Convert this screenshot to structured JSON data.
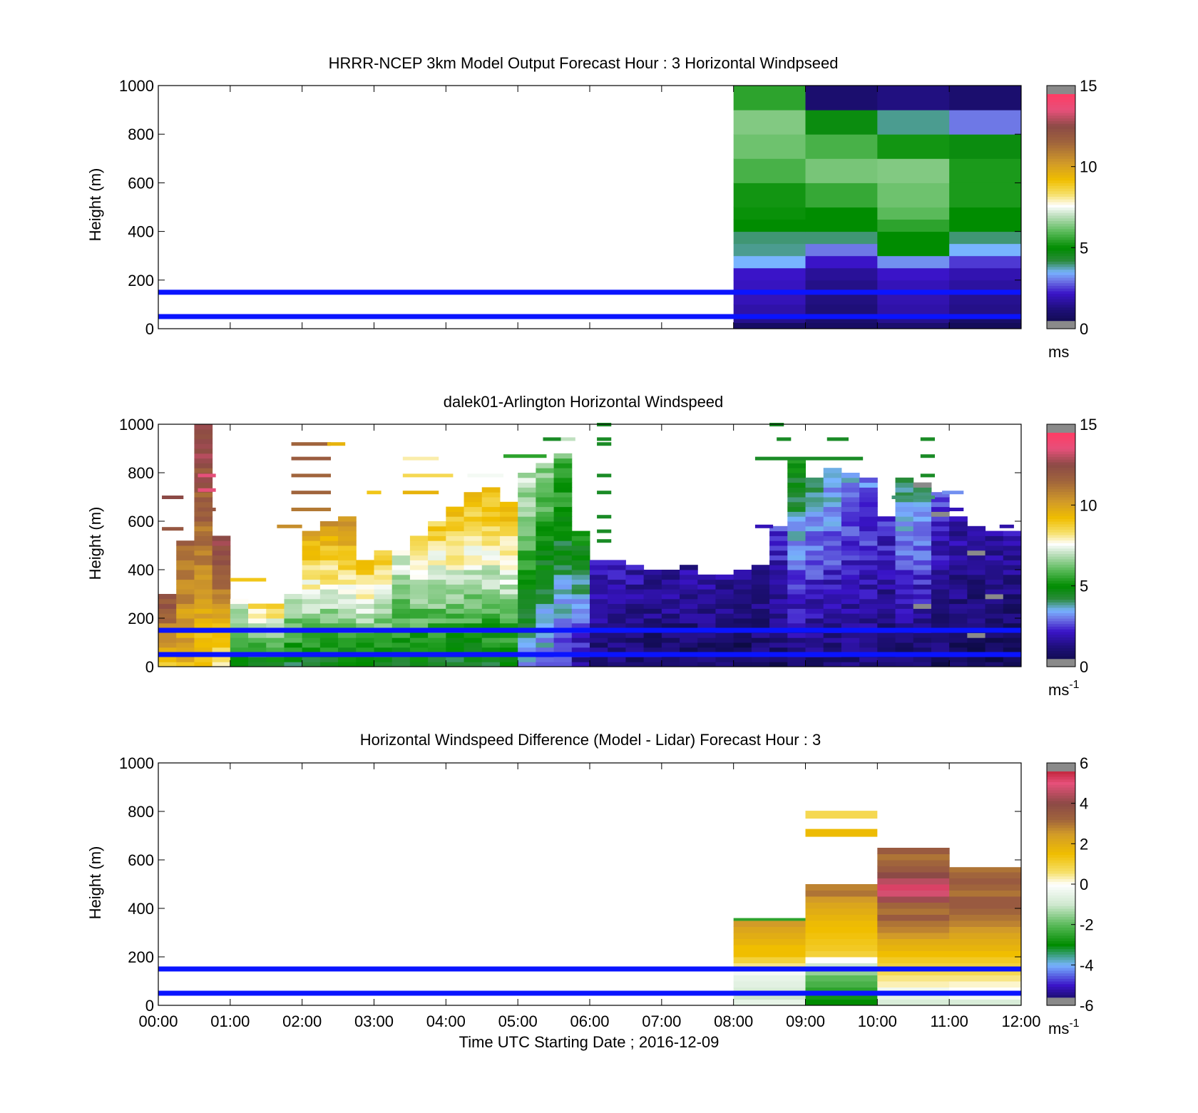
{
  "figure": {
    "xlabel": "Time UTC  Starting Date ; 2016-12-09"
  },
  "chart_data": [
    {
      "type": "heatmap",
      "id": "model",
      "title": "HRRR-NCEP 3km Model Output   Forecast Hour : 3 Horizontal Windpseed",
      "ylabel": "Height (m)",
      "xlim": [
        0,
        12
      ],
      "ylim": [
        0,
        1000
      ],
      "yticks": [
        0,
        200,
        400,
        600,
        800,
        1000
      ],
      "xticks": [
        0,
        1,
        2,
        3,
        4,
        5,
        6,
        7,
        8,
        9,
        10,
        11,
        12
      ],
      "xticklabels_shown": false,
      "colorbar": {
        "min": 0,
        "max": 15,
        "ticks": [
          0,
          5,
          10,
          15
        ],
        "unit": "ms",
        "colormap": "speed"
      },
      "reference_lines_m": [
        50,
        150
      ],
      "columns_x": [
        8,
        9,
        10,
        11
      ],
      "row_bounds_m": [
        0,
        25,
        50,
        100,
        150,
        200,
        250,
        300,
        350,
        400,
        450,
        500,
        600,
        700,
        800,
        900,
        1000
      ],
      "cells_ms": [
        [
          0.8,
          0.8,
          1.0,
          0.6
        ],
        [
          1.5,
          1.0,
          1.5,
          0.9
        ],
        [
          1.8,
          1.2,
          1.8,
          1.4
        ],
        [
          2.0,
          1.3,
          1.9,
          1.5
        ],
        [
          2.1,
          1.4,
          2.0,
          1.7
        ],
        [
          2.2,
          1.6,
          2.2,
          1.9
        ],
        [
          3.5,
          2.2,
          3.2,
          2.5
        ],
        [
          3.9,
          3.0,
          5.0,
          3.5
        ],
        [
          4.0,
          4.0,
          5.0,
          4.0
        ],
        [
          5.0,
          5.0,
          5.5,
          5.0
        ],
        [
          5.1,
          5.0,
          6.0,
          5.0
        ],
        [
          5.2,
          5.6,
          6.2,
          5.3
        ],
        [
          5.8,
          6.3,
          6.4,
          5.3
        ],
        [
          6.2,
          5.8,
          5.2,
          4.8
        ],
        [
          6.4,
          4.8,
          3.9,
          3.0
        ],
        [
          5.5,
          1.0,
          1.3,
          1.0
        ]
      ]
    },
    {
      "type": "heatmap",
      "id": "lidar",
      "title": "dalek01-Arlington  Horizontal Windspeed",
      "ylabel": "Height (m)",
      "xlim": [
        0,
        12
      ],
      "ylim": [
        0,
        1000
      ],
      "yticks": [
        0,
        200,
        400,
        600,
        800,
        1000
      ],
      "xticks": [
        0,
        1,
        2,
        3,
        4,
        5,
        6,
        7,
        8,
        9,
        10,
        11,
        12
      ],
      "xticklabels_shown": false,
      "colorbar": {
        "min": 0,
        "max": 15,
        "ticks": [
          0,
          5,
          10,
          15
        ],
        "unit": "ms",
        "unit_exp": "-1",
        "colormap": "speed"
      },
      "reference_lines_m": [
        50,
        150
      ],
      "column_width_h": 0.25,
      "row_step_m": 20,
      "profiles": [
        {
          "t": 0.0,
          "top": 300,
          "lo": 9.0,
          "hi": 12.5
        },
        {
          "t": 0.25,
          "top": 520,
          "lo": 9.5,
          "hi": 11.5
        },
        {
          "t": 0.5,
          "top": 1000,
          "lo": 9.0,
          "hi": 13.0
        },
        {
          "t": 0.75,
          "top": 530,
          "lo": 8.0,
          "hi": 13.0
        },
        {
          "t": 1.0,
          "top": 280,
          "lo": 4.5,
          "hi": 7.5
        },
        {
          "t": 1.25,
          "top": 260,
          "lo": 4.8,
          "hi": 8.5
        },
        {
          "t": 1.5,
          "top": 250,
          "lo": 4.5,
          "hi": 8.8
        },
        {
          "t": 1.75,
          "top": 300,
          "lo": 4.5,
          "hi": 7.5
        },
        {
          "t": 2.0,
          "top": 560,
          "lo": 4.5,
          "hi": 10.0
        },
        {
          "t": 2.25,
          "top": 590,
          "lo": 4.5,
          "hi": 10.3
        },
        {
          "t": 2.5,
          "top": 610,
          "lo": 4.5,
          "hi": 10.5
        },
        {
          "t": 2.75,
          "top": 440,
          "lo": 4.5,
          "hi": 9.5
        },
        {
          "t": 3.0,
          "top": 470,
          "lo": 4.5,
          "hi": 9.0
        },
        {
          "t": 3.25,
          "top": 480,
          "lo": 4.5,
          "hi": 7.5
        },
        {
          "t": 3.5,
          "top": 540,
          "lo": 4.5,
          "hi": 8.5
        },
        {
          "t": 3.75,
          "top": 600,
          "lo": 4.5,
          "hi": 9.0
        },
        {
          "t": 4.0,
          "top": 660,
          "lo": 4.5,
          "hi": 9.5
        },
        {
          "t": 4.25,
          "top": 720,
          "lo": 4.5,
          "hi": 9.5
        },
        {
          "t": 4.5,
          "top": 730,
          "lo": 4.5,
          "hi": 9.5
        },
        {
          "t": 4.75,
          "top": 680,
          "lo": 4.5,
          "hi": 9.5
        },
        {
          "t": 5.0,
          "top": 800,
          "lo": 3.5,
          "hi": 7.2
        },
        {
          "t": 5.25,
          "top": 830,
          "lo": 3.0,
          "hi": 6.5
        },
        {
          "t": 5.5,
          "top": 880,
          "lo": 2.5,
          "hi": 6.0
        },
        {
          "t": 5.75,
          "top": 560,
          "lo": 1.5,
          "hi": 5.5
        },
        {
          "t": 6.0,
          "top": 440,
          "lo": 1.0,
          "hi": 2.2
        },
        {
          "t": 6.25,
          "top": 440,
          "lo": 1.0,
          "hi": 2.0
        },
        {
          "t": 6.5,
          "top": 420,
          "lo": 1.0,
          "hi": 2.0
        },
        {
          "t": 6.75,
          "top": 400,
          "lo": 0.8,
          "hi": 1.8
        },
        {
          "t": 7.0,
          "top": 400,
          "lo": 0.8,
          "hi": 1.8
        },
        {
          "t": 7.25,
          "top": 420,
          "lo": 0.8,
          "hi": 1.7
        },
        {
          "t": 7.5,
          "top": 380,
          "lo": 0.8,
          "hi": 1.7
        },
        {
          "t": 7.75,
          "top": 370,
          "lo": 0.8,
          "hi": 1.7
        },
        {
          "t": 8.0,
          "top": 390,
          "lo": 0.5,
          "hi": 1.5
        },
        {
          "t": 8.25,
          "top": 410,
          "lo": 0.8,
          "hi": 1.8
        },
        {
          "t": 8.5,
          "top": 580,
          "lo": 0.8,
          "hi": 2.5
        },
        {
          "t": 8.75,
          "top": 850,
          "lo": 1.0,
          "hi": 5.0
        },
        {
          "t": 9.0,
          "top": 780,
          "lo": 1.0,
          "hi": 4.0
        },
        {
          "t": 9.25,
          "top": 820,
          "lo": 1.0,
          "hi": 3.8
        },
        {
          "t": 9.5,
          "top": 800,
          "lo": 1.0,
          "hi": 3.5
        },
        {
          "t": 9.75,
          "top": 780,
          "lo": 1.0,
          "hi": 3.0
        },
        {
          "t": 10.0,
          "top": 620,
          "lo": 0.8,
          "hi": 2.5
        },
        {
          "t": 10.25,
          "top": 780,
          "lo": 0.8,
          "hi": 4.5
        },
        {
          "t": 10.5,
          "top": 750,
          "lo": 0.8,
          "hi": 4.0
        },
        {
          "t": 10.75,
          "top": 720,
          "lo": 0.8,
          "hi": 2.5
        },
        {
          "t": 11.0,
          "top": 620,
          "lo": 0.7,
          "hi": 2.0
        },
        {
          "t": 11.25,
          "top": 580,
          "lo": 0.6,
          "hi": 1.8
        },
        {
          "t": 11.5,
          "top": 550,
          "lo": 0.6,
          "hi": 1.8
        },
        {
          "t": 11.75,
          "top": 550,
          "lo": 0.6,
          "hi": 1.8
        }
      ],
      "streaks": [
        {
          "x0": 0.05,
          "x1": 0.35,
          "h": 570,
          "v": 12.0
        },
        {
          "x0": 0.05,
          "x1": 0.35,
          "h": 700,
          "v": 12.5
        },
        {
          "x0": 0.55,
          "x1": 0.8,
          "h": 790,
          "v": 13.5
        },
        {
          "x0": 0.55,
          "x1": 0.8,
          "h": 730,
          "v": 13.5
        },
        {
          "x0": 0.55,
          "x1": 0.8,
          "h": 650,
          "v": 12.0
        },
        {
          "x0": 1.0,
          "x1": 1.5,
          "h": 360,
          "v": 9.0
        },
        {
          "x0": 1.65,
          "x1": 2.0,
          "h": 580,
          "v": 10.5
        },
        {
          "x0": 1.85,
          "x1": 2.4,
          "h": 920,
          "v": 11.5
        },
        {
          "x0": 1.85,
          "x1": 2.4,
          "h": 860,
          "v": 11.8
        },
        {
          "x0": 1.85,
          "x1": 2.4,
          "h": 790,
          "v": 11.5
        },
        {
          "x0": 1.85,
          "x1": 2.4,
          "h": 720,
          "v": 11.5
        },
        {
          "x0": 1.85,
          "x1": 2.4,
          "h": 650,
          "v": 11.0
        },
        {
          "x0": 2.35,
          "x1": 2.6,
          "h": 920,
          "v": 9.5
        },
        {
          "x0": 2.9,
          "x1": 3.1,
          "h": 720,
          "v": 9.0
        },
        {
          "x0": 3.4,
          "x1": 3.9,
          "h": 720,
          "v": 9.5
        },
        {
          "x0": 3.4,
          "x1": 3.9,
          "h": 860,
          "v": 8.0
        },
        {
          "x0": 3.4,
          "x1": 4.1,
          "h": 790,
          "v": 8.5
        },
        {
          "x0": 4.3,
          "x1": 4.8,
          "h": 790,
          "v": 7.5
        },
        {
          "x0": 4.8,
          "x1": 5.4,
          "h": 870,
          "v": 5.5
        },
        {
          "x0": 5.35,
          "x1": 5.6,
          "h": 940,
          "v": 4.5
        },
        {
          "x0": 5.6,
          "x1": 5.8,
          "h": 940,
          "v": 7.0
        },
        {
          "x0": 6.1,
          "x1": 6.3,
          "h": 1000,
          "v": 4.5
        },
        {
          "x0": 6.1,
          "x1": 6.3,
          "h": 940,
          "v": 4.5
        },
        {
          "x0": 6.1,
          "x1": 6.3,
          "h": 920,
          "v": 4.5
        },
        {
          "x0": 6.1,
          "x1": 6.3,
          "h": 790,
          "v": 4.5
        },
        {
          "x0": 6.1,
          "x1": 6.3,
          "h": 720,
          "v": 4.5
        },
        {
          "x0": 6.1,
          "x1": 6.3,
          "h": 620,
          "v": 4.5
        },
        {
          "x0": 6.1,
          "x1": 6.3,
          "h": 560,
          "v": 4.5
        },
        {
          "x0": 6.1,
          "x1": 6.3,
          "h": 520,
          "v": 4.5
        },
        {
          "x0": 8.3,
          "x1": 9.8,
          "h": 860,
          "v": 4.5
        },
        {
          "x0": 8.6,
          "x1": 8.8,
          "h": 940,
          "v": 4.5
        },
        {
          "x0": 9.3,
          "x1": 9.6,
          "h": 940,
          "v": 4.5
        },
        {
          "x0": 10.6,
          "x1": 10.8,
          "h": 940,
          "v": 4.5
        },
        {
          "x0": 10.6,
          "x1": 10.8,
          "h": 870,
          "v": 4.5
        },
        {
          "x0": 10.6,
          "x1": 10.8,
          "h": 790,
          "v": 4.5
        },
        {
          "x0": 10.2,
          "x1": 10.8,
          "h": 700,
          "v": 4.0
        },
        {
          "x0": 10.9,
          "x1": 11.2,
          "h": 720,
          "v": 3.2
        },
        {
          "x0": 11.0,
          "x1": 11.2,
          "h": 650,
          "v": 2.0
        },
        {
          "x0": 8.3,
          "x1": 8.55,
          "h": 580,
          "v": 2.0
        },
        {
          "x0": 11.7,
          "x1": 11.9,
          "h": 580,
          "v": 1.8
        },
        {
          "x0": 8.5,
          "x1": 8.7,
          "h": 1000,
          "v": 4.5
        }
      ]
    },
    {
      "type": "heatmap",
      "id": "difference",
      "title": "Horizontal Windspeed Difference (Model - Lidar) Forecast Hour : 3",
      "xlabel": "Time UTC  Starting Date ; 2016-12-09",
      "ylabel": "Height (m)",
      "xlim": [
        0,
        12
      ],
      "ylim": [
        0,
        1000
      ],
      "yticks": [
        0,
        200,
        400,
        600,
        800,
        1000
      ],
      "xticks": [
        0,
        1,
        2,
        3,
        4,
        5,
        6,
        7,
        8,
        9,
        10,
        11,
        12
      ],
      "xticklabels": [
        "00:00",
        "01:00",
        "02:00",
        "03:00",
        "04:00",
        "05:00",
        "06:00",
        "07:00",
        "08:00",
        "09:00",
        "10:00",
        "11:00",
        "12:00"
      ],
      "colorbar": {
        "min": -6,
        "max": 6,
        "ticks": [
          -6,
          -4,
          -2,
          0,
          2,
          4,
          6
        ],
        "unit": "ms",
        "unit_exp": "-1",
        "colormap": "diff"
      },
      "reference_lines_m": [
        50,
        150
      ],
      "row_bounds_m": [
        0,
        25,
        50,
        75,
        100,
        125,
        150,
        175,
        200,
        225,
        250,
        275,
        300,
        325,
        350,
        375,
        400,
        425,
        450,
        475,
        500,
        525,
        550,
        575,
        600,
        625,
        650
      ],
      "columns": [
        {
          "x0": 8,
          "x1": 9,
          "top": 360,
          "values_ms": [
            -0.5,
            -1.0,
            -0.8,
            -0.6,
            -0.5,
            -0.2,
            0.5,
            1.0,
            1.5,
            1.5,
            1.8,
            2.0,
            2.2,
            2.5,
            -2.5,
            1.2
          ]
        },
        {
          "x0": 9,
          "x1": 10,
          "top": 500,
          "values_ms": [
            -3.0,
            -2.8,
            -2.5,
            -2.2,
            -2.0,
            -1.5,
            -1.0,
            0.0,
            1.0,
            1.2,
            1.3,
            1.4,
            1.5,
            1.6,
            1.8,
            2.0,
            2.2,
            2.5,
            3.0,
            2.8,
            3.5
          ]
        },
        {
          "x0": 10,
          "x1": 11,
          "top": 655,
          "values_ms": [
            -0.8,
            -0.5,
            -0.3,
            0.3,
            0.5,
            0.8,
            1.0,
            1.2,
            1.5,
            1.8,
            2.0,
            2.5,
            2.8,
            3.0,
            3.5,
            3.0,
            3.2,
            4.2,
            4.8,
            5.2,
            4.5,
            4.0,
            3.5,
            3.2,
            3.0,
            3.5
          ]
        },
        {
          "x0": 11,
          "x1": 12,
          "top": 570,
          "values_ms": [
            -0.8,
            -0.2,
            0.0,
            0.2,
            0.5,
            0.8,
            1.0,
            1.2,
            1.5,
            1.8,
            2.0,
            2.2,
            2.5,
            2.8,
            3.0,
            3.2,
            3.5,
            3.5,
            3.0,
            3.2,
            3.5,
            3.2,
            3.0
          ]
        }
      ],
      "streaks": [
        {
          "x0": 9,
          "x1": 10,
          "h": 785,
          "v": 0.8
        },
        {
          "x0": 9,
          "x1": 10,
          "h": 710,
          "v": 1.6
        }
      ]
    }
  ]
}
